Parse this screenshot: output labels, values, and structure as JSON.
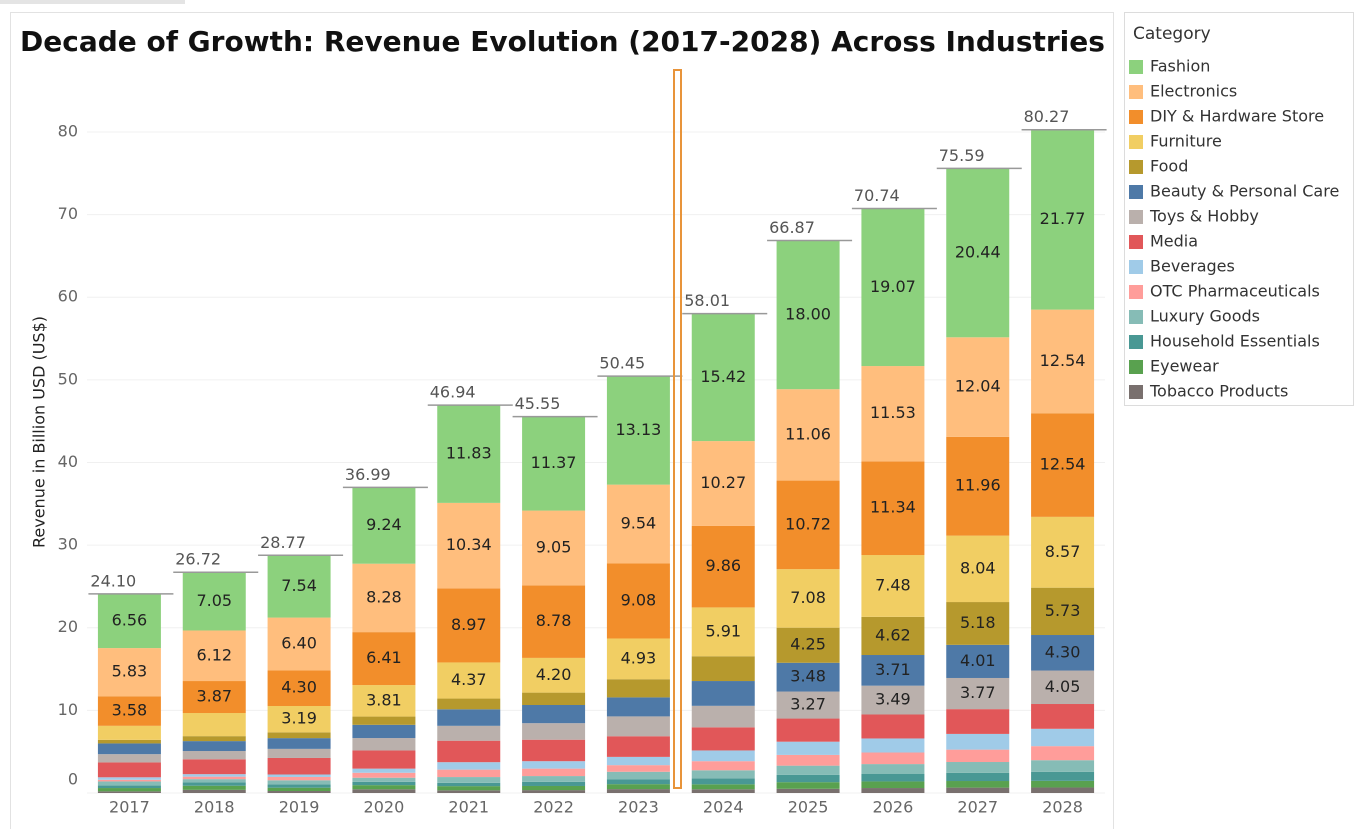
{
  "chart_data": {
    "type": "stacked-bar",
    "title": "Decade of Growth: Revenue Evolution (2017-2028) Across Industries",
    "y_label": "Revenue in Billion USD (US$)",
    "legend_title": "Category",
    "categories": [
      "2017",
      "2018",
      "2019",
      "2020",
      "2021",
      "2022",
      "2023",
      "2024",
      "2025",
      "2026",
      "2027",
      "2028"
    ],
    "ylim": [
      0,
      87.5
    ],
    "yticks": [
      0,
      10,
      20,
      30,
      40,
      50,
      60,
      70,
      80
    ],
    "grid": true,
    "totals": [
      24.1,
      26.72,
      28.77,
      36.99,
      46.94,
      45.55,
      50.45,
      58.01,
      66.87,
      70.74,
      75.59,
      80.27
    ],
    "total_labels": [
      "24.10",
      "26.72",
      "28.77",
      "36.99",
      "46.94",
      "45.55",
      "50.45",
      "58.01",
      "66.87",
      "70.74",
      "75.59",
      "80.27"
    ],
    "series": [
      {
        "name": "Fashion",
        "color": "#8cd17d",
        "values": [
          6.56,
          7.05,
          7.54,
          9.24,
          11.83,
          11.37,
          13.13,
          15.42,
          18.0,
          19.07,
          20.44,
          21.77
        ],
        "value_labels": [
          "6.56",
          "7.05",
          "7.54",
          "9.24",
          "11.83",
          "11.37",
          "13.13",
          "15.42",
          "18.00",
          "19.07",
          "20.44",
          "21.77"
        ]
      },
      {
        "name": "Electronics",
        "color": "#ffbe7d",
        "values": [
          5.83,
          6.12,
          6.4,
          8.28,
          10.34,
          9.05,
          9.54,
          10.27,
          11.06,
          11.53,
          12.04,
          12.54
        ],
        "value_labels": [
          "5.83",
          "6.12",
          "6.40",
          "8.28",
          "10.34",
          "9.05",
          "9.54",
          "10.27",
          "11.06",
          "11.53",
          "12.04",
          "12.54"
        ]
      },
      {
        "name": "DIY & Hardware Store",
        "color": "#f28e2b",
        "values": [
          3.58,
          3.87,
          4.3,
          6.41,
          8.97,
          8.78,
          9.08,
          9.86,
          10.72,
          11.34,
          11.96,
          12.54
        ],
        "value_labels": [
          "3.58",
          "3.87",
          "4.30",
          "6.41",
          "8.97",
          "8.78",
          "9.08",
          "9.86",
          "10.72",
          "11.34",
          "11.96",
          "12.54"
        ]
      },
      {
        "name": "Furniture",
        "color": "#f1ce63",
        "values": [
          1.7,
          2.8,
          3.19,
          3.81,
          4.37,
          4.2,
          4.93,
          5.91,
          7.08,
          7.48,
          8.04,
          8.57
        ],
        "value_labels": [
          null,
          null,
          "3.19",
          "3.81",
          "4.37",
          "4.20",
          "4.93",
          "5.91",
          "7.08",
          "7.48",
          "8.04",
          "8.57"
        ]
      },
      {
        "name": "Food",
        "color": "#b6992d",
        "values": [
          0.43,
          0.6,
          0.7,
          1.0,
          1.3,
          1.5,
          2.2,
          3.0,
          4.25,
          4.62,
          5.18,
          5.73
        ],
        "value_labels": [
          null,
          null,
          null,
          null,
          null,
          null,
          null,
          null,
          "4.25",
          "4.62",
          "5.18",
          "5.73"
        ]
      },
      {
        "name": "Beauty & Personal Care",
        "color": "#4e79a7",
        "values": [
          1.3,
          1.2,
          1.3,
          1.6,
          2.0,
          2.2,
          2.3,
          3.0,
          3.48,
          3.71,
          4.01,
          4.3
        ],
        "value_labels": [
          null,
          null,
          null,
          null,
          null,
          null,
          null,
          null,
          "3.48",
          "3.71",
          "4.01",
          "4.30"
        ]
      },
      {
        "name": "Toys & Hobby",
        "color": "#bab0ac",
        "values": [
          1.0,
          1.0,
          1.1,
          1.5,
          1.8,
          2.0,
          2.4,
          2.6,
          3.27,
          3.49,
          3.77,
          4.05
        ],
        "value_labels": [
          null,
          null,
          null,
          null,
          null,
          null,
          null,
          null,
          "3.27",
          "3.49",
          "3.77",
          "4.05"
        ]
      },
      {
        "name": "Media",
        "color": "#e15759",
        "values": [
          1.8,
          1.8,
          2.0,
          2.2,
          2.6,
          2.6,
          2.5,
          2.8,
          2.8,
          2.9,
          3.0,
          3.0
        ]
      },
      {
        "name": "Beverages",
        "color": "#a0cbe8",
        "values": [
          0.3,
          0.3,
          0.3,
          0.5,
          0.9,
          0.9,
          1.0,
          1.3,
          1.6,
          1.7,
          1.9,
          2.1
        ]
      },
      {
        "name": "OTC Pharmaceuticals",
        "color": "#ff9d9a",
        "values": [
          0.2,
          0.3,
          0.4,
          0.6,
          0.9,
          0.9,
          0.8,
          1.1,
          1.3,
          1.4,
          1.5,
          1.7
        ]
      },
      {
        "name": "Luxury Goods",
        "color": "#86bcb6",
        "values": [
          0.5,
          0.4,
          0.5,
          0.5,
          0.7,
          0.7,
          0.9,
          1.0,
          1.1,
          1.2,
          1.3,
          1.4
        ]
      },
      {
        "name": "Household Essentials",
        "color": "#499894",
        "values": [
          0.3,
          0.4,
          0.4,
          0.4,
          0.4,
          0.5,
          0.6,
          0.7,
          0.9,
          0.9,
          1.0,
          1.1
        ]
      },
      {
        "name": "Eyewear",
        "color": "#59a14f",
        "values": [
          0.4,
          0.5,
          0.4,
          0.5,
          0.5,
          0.5,
          0.6,
          0.6,
          0.8,
          0.8,
          0.8,
          0.8
        ]
      },
      {
        "name": "Tobacco Products",
        "color": "#79706e",
        "values": [
          0.2,
          0.38,
          0.24,
          0.45,
          0.33,
          0.35,
          0.47,
          0.45,
          0.51,
          0.6,
          0.65,
          0.67
        ]
      }
    ]
  }
}
